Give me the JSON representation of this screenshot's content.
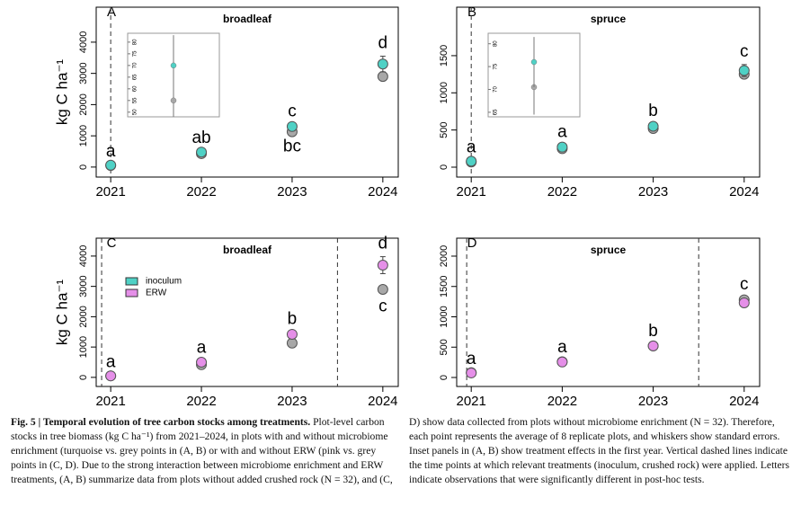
{
  "chart_data": [
    {
      "type": "scatter",
      "panel": "A",
      "title": "broadleaf",
      "ylabel": "kg C ha⁻¹",
      "x": [
        2021,
        2022,
        2023,
        2024
      ],
      "xlim": [
        2020.84,
        2024.17
      ],
      "xticks": [
        2021,
        2022,
        2023,
        2024
      ],
      "ylim": [
        -320,
        5120
      ],
      "yticks": [
        0,
        1000,
        2000,
        3000,
        4000
      ],
      "series": [
        {
          "color": "#a8a8a8",
          "values": [
            50,
            430,
            1130,
            2900
          ],
          "errors": [
            15,
            40,
            60,
            120
          ]
        },
        {
          "color": "#4fd1c5",
          "values": [
            60,
            480,
            1300,
            3300
          ],
          "errors": [
            20,
            40,
            70,
            250
          ]
        }
      ],
      "letters_above": [
        "a",
        "ab",
        "c",
        "d"
      ],
      "letters_below": [
        null,
        null,
        "bc",
        null
      ],
      "vlines": [
        2021
      ],
      "inset": {
        "ylim": [
          48,
          83.8
        ],
        "yticks": [
          50,
          55,
          60,
          65,
          70,
          75,
          80
        ],
        "series": [
          {
            "color": "#a8a8a8",
            "values": [
              55
            ],
            "errors": [
              7
            ]
          },
          {
            "color": "#4fd1c5",
            "values": [
              70
            ],
            "errors": [
              13
            ]
          }
        ]
      }
    },
    {
      "type": "scatter",
      "panel": "B",
      "title": "spruce",
      "x": [
        2021,
        2022,
        2023,
        2024
      ],
      "xlim": [
        2020.84,
        2024.17
      ],
      "xticks": [
        2021,
        2022,
        2023,
        2024
      ],
      "ylim": [
        -133,
        2152
      ],
      "yticks": [
        0,
        500,
        1000,
        1500
      ],
      "series": [
        {
          "color": "#a8a8a8",
          "values": [
            70,
            250,
            520,
            1250
          ],
          "errors": [
            10,
            20,
            25,
            50
          ]
        },
        {
          "color": "#4fd1c5",
          "values": [
            80,
            270,
            550,
            1300
          ],
          "errors": [
            12,
            25,
            30,
            80
          ]
        }
      ],
      "letters_above": [
        "a",
        "a",
        "b",
        "c"
      ],
      "letters_below": [
        null,
        null,
        null,
        null
      ],
      "vlines": [
        2021
      ],
      "inset": {
        "ylim": [
          64,
          82.3
        ],
        "yticks": [
          65,
          70,
          75,
          80
        ],
        "series": [
          {
            "color": "#a8a8a8",
            "values": [
              70.5
            ],
            "errors": [
              6
            ]
          },
          {
            "color": "#4fd1c5",
            "values": [
              76
            ],
            "errors": [
              5.5
            ]
          }
        ]
      }
    },
    {
      "type": "scatter",
      "panel": "C",
      "title": "broadleaf",
      "ylabel": "kg C ha⁻¹",
      "x": [
        2021,
        2022,
        2023,
        2024
      ],
      "xlim": [
        2020.84,
        2024.17
      ],
      "xticks": [
        2021,
        2022,
        2023,
        2024
      ],
      "ylim": [
        -300,
        4590
      ],
      "yticks": [
        0,
        1000,
        2000,
        3000,
        4000
      ],
      "series": [
        {
          "color": "#a8a8a8",
          "values": [
            50,
            420,
            1130,
            2900
          ],
          "errors": [
            15,
            40,
            60,
            130
          ]
        },
        {
          "color": "#e58fe8",
          "values": [
            50,
            500,
            1420,
            3700
          ],
          "errors": [
            15,
            40,
            70,
            280
          ]
        }
      ],
      "letters_above": [
        "a",
        "a",
        "b",
        "d"
      ],
      "letters_below": [
        null,
        null,
        null,
        "c"
      ],
      "vlines": [
        2020.9,
        2023.5
      ],
      "legend": [
        {
          "name": "inoculum",
          "color": "#4fd1c5"
        },
        {
          "name": "ERW",
          "color": "#e58fe8"
        }
      ]
    },
    {
      "type": "scatter",
      "panel": "D",
      "title": "spruce",
      "x": [
        2021,
        2022,
        2023,
        2024
      ],
      "xlim": [
        2020.84,
        2024.17
      ],
      "xticks": [
        2021,
        2022,
        2023,
        2024
      ],
      "ylim": [
        -148,
        2296
      ],
      "yticks": [
        0,
        500,
        1000,
        1500,
        2000
      ],
      "series": [
        {
          "color": "#a8a8a8",
          "values": [
            80,
            260,
            520,
            1280
          ],
          "errors": [
            10,
            20,
            25,
            40
          ]
        },
        {
          "color": "#e58fe8",
          "values": [
            75,
            255,
            520,
            1230
          ],
          "errors": [
            10,
            20,
            25,
            45
          ]
        }
      ],
      "letters_above": [
        "a",
        "a",
        "b",
        "c"
      ],
      "letters_below": [
        null,
        null,
        null,
        null
      ],
      "vlines": [
        2020.95,
        2023.5
      ]
    }
  ],
  "caption": {
    "label": "Fig. 5 | Temporal evolution of tree carbon stocks among treatments.",
    "text": "Plot-level carbon stocks in tree biomass (kg C ha⁻¹) from 2021–2024, in plots with and without microbiome enrichment (turquoise vs. grey points in (A, B) or with and without ERW (pink vs. grey points in (C, D). Due to the strong interaction between microbiome enrichment and ERW treatments, (A, B) summarize data from plots without added crushed rock (N = 32), and (C, D) show data collected from plots without microbiome enrichment (N = 32). Therefore, each point represents the average of 8 replicate plots, and whiskers show standard errors. Inset panels in (A, B) show treatment effects in the first year. Vertical dashed lines indicate the time points at which relevant treatments (inoculum, crushed rock) were applied. Letters indicate observations that were significantly different in post-hoc tests."
  }
}
